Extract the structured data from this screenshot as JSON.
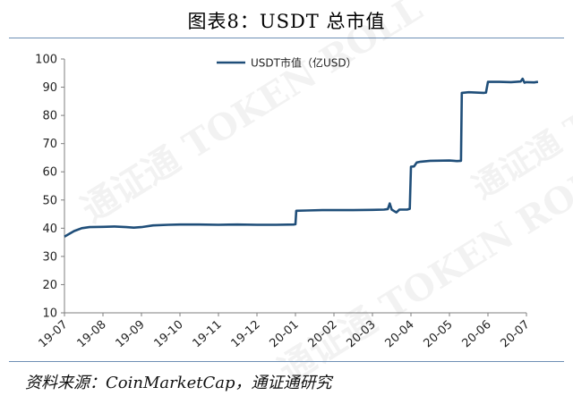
{
  "title": "图表8：USDT 总市值",
  "source": "资料来源：CoinMarketCap，通证通研究",
  "watermark": "通证通 TOKEN ROLL",
  "chart_data": {
    "type": "line",
    "title": "",
    "xlabel": "",
    "ylabel": "",
    "ylim": [
      10,
      100
    ],
    "yticks": [
      10,
      20,
      30,
      40,
      50,
      60,
      70,
      80,
      90,
      100
    ],
    "xticks": [
      "19-07",
      "19-08",
      "19-09",
      "19-10",
      "19-11",
      "19-12",
      "20-01",
      "20-02",
      "20-03",
      "20-04",
      "20-05",
      "20-06",
      "20-07"
    ],
    "legend_position": "top-center",
    "grid": false,
    "series": [
      {
        "name": "USDT市值（亿USD）",
        "color": "#1f4e79",
        "points": [
          [
            0.0,
            37.0
          ],
          [
            0.1,
            37.8
          ],
          [
            0.25,
            39.0
          ],
          [
            0.45,
            40.0
          ],
          [
            0.65,
            40.4
          ],
          [
            1.0,
            40.5
          ],
          [
            1.3,
            40.6
          ],
          [
            1.6,
            40.4
          ],
          [
            1.8,
            40.2
          ],
          [
            2.0,
            40.4
          ],
          [
            2.3,
            41.0
          ],
          [
            2.7,
            41.2
          ],
          [
            3.0,
            41.3
          ],
          [
            3.5,
            41.3
          ],
          [
            4.0,
            41.2
          ],
          [
            4.5,
            41.3
          ],
          [
            5.0,
            41.2
          ],
          [
            5.5,
            41.2
          ],
          [
            5.95,
            41.3
          ],
          [
            6.0,
            41.4
          ],
          [
            6.02,
            46.2
          ],
          [
            6.3,
            46.3
          ],
          [
            6.7,
            46.4
          ],
          [
            7.0,
            46.4
          ],
          [
            7.5,
            46.4
          ],
          [
            8.0,
            46.5
          ],
          [
            8.3,
            46.6
          ],
          [
            8.4,
            46.8
          ],
          [
            8.45,
            48.8
          ],
          [
            8.5,
            46.6
          ],
          [
            8.62,
            45.6
          ],
          [
            8.7,
            46.6
          ],
          [
            8.9,
            46.6
          ],
          [
            8.97,
            46.9
          ],
          [
            9.0,
            61.8
          ],
          [
            9.08,
            61.9
          ],
          [
            9.15,
            63.3
          ],
          [
            9.25,
            63.6
          ],
          [
            9.5,
            63.9
          ],
          [
            10.0,
            64.0
          ],
          [
            10.2,
            63.8
          ],
          [
            10.3,
            63.9
          ],
          [
            10.32,
            88.0
          ],
          [
            10.5,
            88.2
          ],
          [
            10.9,
            88.0
          ],
          [
            10.95,
            88.1
          ],
          [
            11.0,
            91.9
          ],
          [
            11.3,
            91.9
          ],
          [
            11.6,
            91.8
          ],
          [
            11.85,
            92.0
          ],
          [
            11.9,
            93.0
          ],
          [
            11.95,
            91.6
          ],
          [
            12.0,
            91.8
          ],
          [
            12.2,
            91.7
          ],
          [
            12.3,
            91.9
          ]
        ]
      }
    ]
  }
}
